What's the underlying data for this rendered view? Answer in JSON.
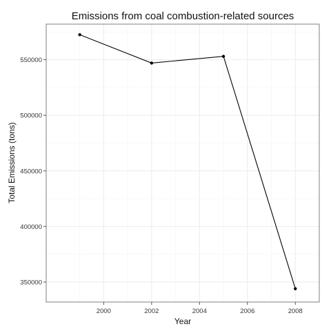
{
  "chart_data": {
    "type": "line",
    "title": "Emissions from coal combustion-related sources",
    "xlabel": "Year",
    "ylabel": "Total Emissions (tons)",
    "x": [
      1999,
      2002,
      2005,
      2008
    ],
    "series": [
      {
        "values": [
          572500,
          547000,
          553000,
          344000
        ]
      }
    ],
    "xlim": [
      1997.6,
      2009.0
    ],
    "ylim": [
      332000,
      582000
    ],
    "x_ticks": [
      2000,
      2002,
      2004,
      2006,
      2008
    ],
    "x_tick_labels": [
      "2000",
      "2002",
      "2004",
      "2006",
      "2008"
    ],
    "y_ticks": [
      350000,
      400000,
      450000,
      500000,
      550000
    ],
    "y_tick_labels": [
      "350000",
      "400000",
      "450000",
      "500000",
      "550000"
    ],
    "grid": true,
    "line_color": "#000000",
    "grid_color": "#ebebeb",
    "panel_border_color": "#7f7f7f"
  }
}
